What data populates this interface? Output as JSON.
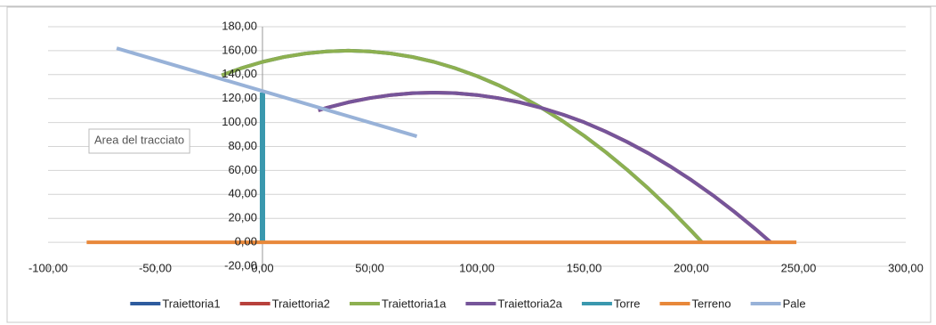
{
  "chart_data": {
    "type": "scatter-line",
    "annotation": "Area del tracciato",
    "xlim": [
      -100,
      300
    ],
    "xticks": [
      {
        "value": -100,
        "label": "-100,00"
      },
      {
        "value": -50,
        "label": "-50,00"
      },
      {
        "value": 0,
        "label": "0,00"
      },
      {
        "value": 50,
        "label": "50,00"
      },
      {
        "value": 100,
        "label": "100,00"
      },
      {
        "value": 150,
        "label": "150,00"
      },
      {
        "value": 200,
        "label": "200,00"
      },
      {
        "value": 250,
        "label": "250,00"
      },
      {
        "value": 300,
        "label": "300,00"
      }
    ],
    "ylim": [
      -20,
      180
    ],
    "yticks": [
      {
        "value": -20,
        "label": "-20,00"
      },
      {
        "value": 0,
        "label": "0,00"
      },
      {
        "value": 20,
        "label": "20,00"
      },
      {
        "value": 40,
        "label": "40,00"
      },
      {
        "value": 60,
        "label": "60,00"
      },
      {
        "value": 80,
        "label": "80,00"
      },
      {
        "value": 100,
        "label": "100,00"
      },
      {
        "value": 120,
        "label": "120,00"
      },
      {
        "value": 140,
        "label": "140,00"
      },
      {
        "value": 160,
        "label": "160,00"
      },
      {
        "value": 180,
        "label": "180,00"
      }
    ],
    "grid": true,
    "legend": "bottom",
    "series": [
      {
        "name": "Traiettoria1",
        "color": "#2e5c9e",
        "x": [
          -19,
          -10,
          0,
          10,
          20,
          30,
          40,
          50,
          60,
          70,
          80,
          90,
          100,
          110,
          120,
          130,
          140,
          150,
          160,
          170,
          180,
          190,
          200,
          205
        ],
        "values": [
          139.5,
          145.3,
          150.6,
          154.7,
          157.6,
          159.4,
          160,
          159.4,
          157.6,
          154.7,
          150.6,
          145.3,
          138.8,
          131.2,
          122.4,
          112.4,
          101.2,
          88.9,
          75.4,
          60.7,
          44.8,
          27.8,
          9.5,
          0
        ]
      },
      {
        "name": "Traiettoria2",
        "color": "#b8413c",
        "x": [
          26,
          30,
          40,
          50,
          60,
          70,
          80,
          90,
          100,
          110,
          120,
          130,
          140,
          150,
          160,
          170,
          180,
          190,
          200,
          210,
          220,
          230,
          237
        ],
        "values": [
          110.2,
          112.3,
          116.9,
          120.4,
          123.0,
          124.5,
          125,
          124.5,
          123.0,
          120.4,
          116.9,
          112.3,
          106.7,
          100.2,
          92.5,
          83.9,
          74.3,
          63.6,
          52.0,
          39.3,
          25.6,
          10.9,
          0
        ]
      },
      {
        "name": "Traiettoria1a",
        "color": "#8db050",
        "x": [
          -19,
          -10,
          0,
          10,
          20,
          30,
          40,
          50,
          60,
          70,
          80,
          90,
          100,
          110,
          120,
          130,
          140,
          150,
          160,
          170,
          180,
          190,
          200,
          205
        ],
        "values": [
          139.5,
          145.3,
          150.6,
          154.7,
          157.6,
          159.4,
          160,
          159.4,
          157.6,
          154.7,
          150.6,
          145.3,
          138.8,
          131.2,
          122.4,
          112.4,
          101.2,
          88.9,
          75.4,
          60.7,
          44.8,
          27.8,
          9.5,
          0
        ]
      },
      {
        "name": "Traiettoria2a",
        "color": "#76559a",
        "x": [
          26,
          30,
          40,
          50,
          60,
          70,
          80,
          90,
          100,
          110,
          120,
          130,
          140,
          150,
          160,
          170,
          180,
          190,
          200,
          210,
          220,
          230,
          237
        ],
        "values": [
          110.2,
          112.3,
          116.9,
          120.4,
          123.0,
          124.5,
          125,
          124.5,
          123.0,
          120.4,
          116.9,
          112.3,
          106.7,
          100.2,
          92.5,
          83.9,
          74.3,
          63.6,
          52.0,
          39.3,
          25.6,
          10.9,
          0
        ]
      },
      {
        "name": "Torre",
        "color": "#3a98ae",
        "x": [
          0,
          0
        ],
        "values": [
          0,
          125
        ]
      },
      {
        "name": "Terreno",
        "color": "#e8883a",
        "x": [
          -82,
          249
        ],
        "values": [
          0,
          0
        ]
      },
      {
        "name": "Pale",
        "color": "#98b2d8",
        "x": [
          -68,
          72
        ],
        "values": [
          162,
          88.5
        ]
      }
    ]
  }
}
